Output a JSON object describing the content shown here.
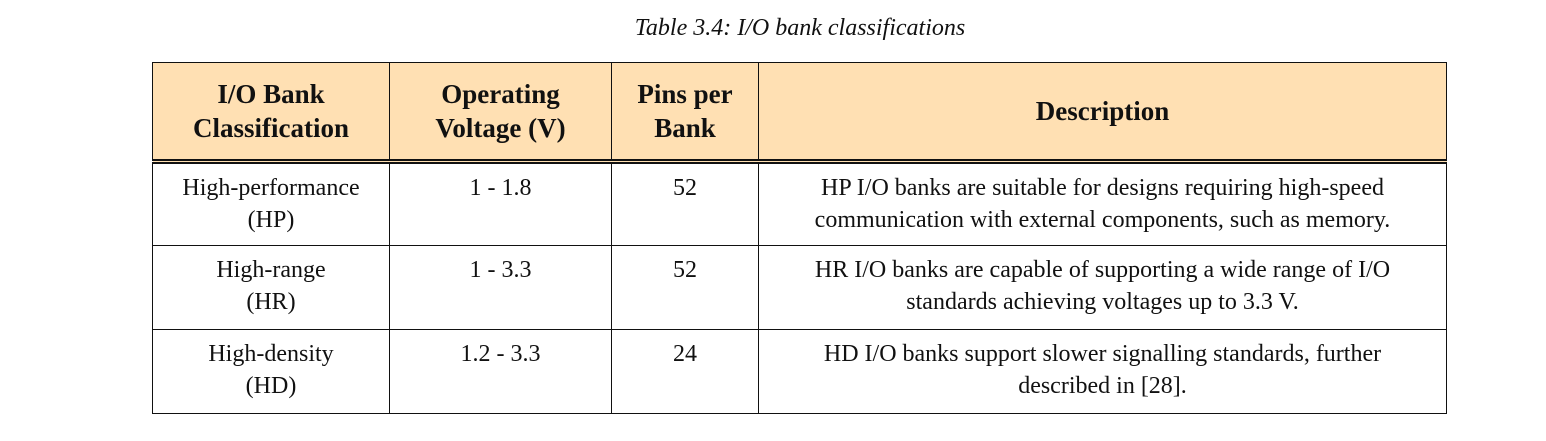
{
  "caption": "Table 3.4: I/O bank classifications",
  "table": {
    "headers": [
      [
        "I/O Bank",
        "Classification"
      ],
      [
        "Operating",
        "Voltage (V)"
      ],
      [
        "Pins per",
        "Bank"
      ],
      [
        "Description"
      ]
    ],
    "rows": [
      {
        "classification": [
          "High-performance",
          "(HP)"
        ],
        "voltage": "1 - 1.8",
        "pins": "52",
        "description": [
          "HP I/O banks are suitable for designs requiring high-speed",
          "communication with external components, such as memory."
        ]
      },
      {
        "classification": [
          "High-range",
          "(HR)"
        ],
        "voltage": "1 - 3.3",
        "pins": "52",
        "description": [
          "HR I/O banks are capable of supporting a wide range of I/O",
          "standards achieving voltages up to 3.3 V."
        ]
      },
      {
        "classification": [
          "High-density",
          "(HD)"
        ],
        "voltage": "1.2 - 3.3",
        "pins": "24",
        "description": [
          "HD I/O banks support slower signalling standards, further",
          "described in [28]."
        ]
      }
    ]
  },
  "colors": {
    "header_background": "#ffe0b3",
    "border": "#111111",
    "text": "#111111"
  }
}
